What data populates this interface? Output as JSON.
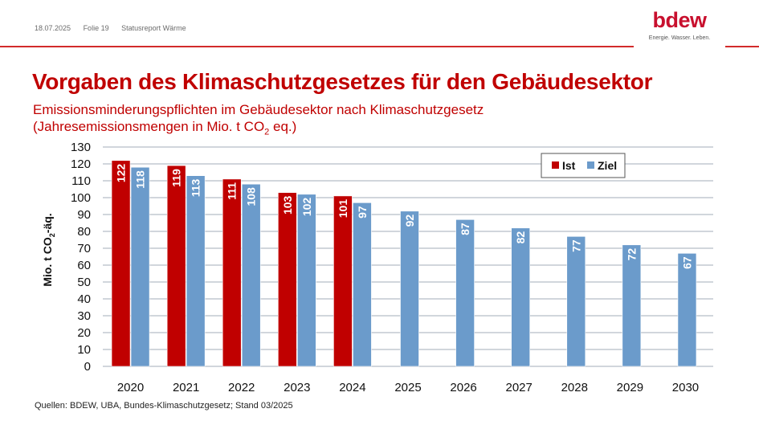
{
  "header": {
    "date": "18.07.2025",
    "slide": "Folie 19",
    "report": "Statusreport Wärme"
  },
  "logo": {
    "wordmark": "bdew",
    "tagline": "Energie. Wasser. Leben."
  },
  "colors": {
    "brand_red": "#c00000",
    "ist": "#c00000",
    "ziel": "#6b9bcb",
    "grid": "#c2c8d0"
  },
  "title": "Vorgaben des Klimaschutzgesetzes für den Gebäudesektor",
  "subtitle_line1": "Emissionsminderungspflichten im Gebäudesektor nach Klimaschutzgesetz",
  "subtitle_line2_pre": "(Jahresemissionsmengen in Mio. t CO",
  "subtitle_line2_sub": "2",
  "subtitle_line2_post": " eq.)",
  "source": "Quellen: BDEW, UBA, Bundes-Klimaschutzgesetz; Stand 03/2025",
  "chart_data": {
    "type": "bar",
    "title": "Vorgaben des Klimaschutzgesetzes für den Gebäudesektor",
    "xlabel": "",
    "ylabel": "Mio. t CO2-äq.",
    "ylim": [
      0,
      130
    ],
    "yticks": [
      0,
      10,
      20,
      30,
      40,
      50,
      60,
      70,
      80,
      90,
      100,
      110,
      120,
      130
    ],
    "grid": true,
    "legend_position": "top-right",
    "categories": [
      "2020",
      "2021",
      "2022",
      "2023",
      "2024",
      "2025",
      "2026",
      "2027",
      "2028",
      "2029",
      "2030"
    ],
    "series": [
      {
        "name": "Ist",
        "color": "#c00000",
        "values": [
          122,
          119,
          111,
          103,
          101,
          null,
          null,
          null,
          null,
          null,
          null
        ]
      },
      {
        "name": "Ziel",
        "color": "#6b9bcb",
        "values": [
          118,
          113,
          108,
          102,
          97,
          92,
          87,
          82,
          77,
          72,
          67
        ]
      }
    ]
  }
}
